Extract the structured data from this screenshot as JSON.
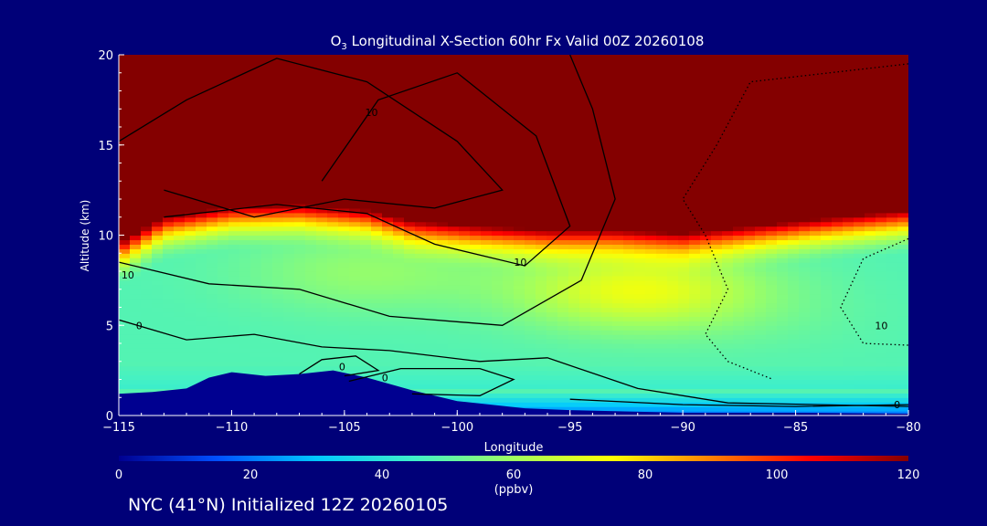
{
  "chart_data": {
    "type": "heatmap",
    "title_prefix": "O",
    "title_subscript": "3",
    "title_rest": " Longitudinal X-Section 60hr  Fx Valid 00Z 20260108",
    "xlabel": "Longitude",
    "ylabel": "Altitude (km)",
    "xlim": [
      -115,
      -80
    ],
    "ylim": [
      0,
      20
    ],
    "x_ticks": [
      {
        "v": -115,
        "label": "−115"
      },
      {
        "v": -110,
        "label": "−110"
      },
      {
        "v": -105,
        "label": "−105"
      },
      {
        "v": -100,
        "label": "−100"
      },
      {
        "v": -95,
        "label": "−95"
      },
      {
        "v": -90,
        "label": "−90"
      },
      {
        "v": -85,
        "label": "−85"
      },
      {
        "v": -80,
        "label": "−80"
      }
    ],
    "y_ticks": [
      {
        "v": 0,
        "label": "0"
      },
      {
        "v": 5,
        "label": "5"
      },
      {
        "v": 10,
        "label": "10"
      },
      {
        "v": 15,
        "label": "15"
      },
      {
        "v": 20,
        "label": "20"
      }
    ],
    "colorbar": {
      "range": [
        0,
        120
      ],
      "ticks": [
        {
          "v": 0,
          "label": "0"
        },
        {
          "v": 20,
          "label": "20"
        },
        {
          "v": 40,
          "label": "40"
        },
        {
          "v": 60,
          "label": "60"
        },
        {
          "v": 80,
          "label": "80"
        },
        {
          "v": 100,
          "label": "100"
        },
        {
          "v": 120,
          "label": "120"
        }
      ],
      "units": "(ppbv)",
      "colors": [
        "#000090",
        "#0050ff",
        "#00c8ff",
        "#40f0c8",
        "#a0ff60",
        "#ffff00",
        "#ff8000",
        "#ff0000",
        "#840000"
      ]
    },
    "tropopause_km": [
      [
        -115,
        9.3
      ],
      [
        -113,
        10.7
      ],
      [
        -110,
        11.3
      ],
      [
        -107,
        11.4
      ],
      [
        -104,
        11.1
      ],
      [
        -102,
        10.5
      ],
      [
        -99,
        10.2
      ],
      [
        -96,
        10.0
      ],
      [
        -93,
        10.0
      ],
      [
        -90,
        9.8
      ],
      [
        -87,
        10.2
      ],
      [
        -84,
        10.6
      ],
      [
        -80,
        11.1
      ]
    ],
    "mid_level_max": [
      {
        "lon": -104,
        "alt": 8.0,
        "ppbv": 58
      },
      {
        "lon": -92,
        "alt": 7.0,
        "ppbv": 72
      },
      {
        "lon": -86,
        "alt": 5.5,
        "ppbv": 50
      }
    ],
    "terrain_km": [
      [
        -115,
        1.2
      ],
      [
        -113.5,
        1.3
      ],
      [
        -112,
        1.5
      ],
      [
        -111,
        2.1
      ],
      [
        -110,
        2.4
      ],
      [
        -108.5,
        2.2
      ],
      [
        -107,
        2.3
      ],
      [
        -105.5,
        2.5
      ],
      [
        -104,
        2.1
      ],
      [
        -102,
        1.4
      ],
      [
        -100,
        0.8
      ],
      [
        -97,
        0.4
      ],
      [
        -95,
        0.3
      ],
      [
        -90,
        0.15
      ],
      [
        -85,
        0.15
      ],
      [
        -80,
        0.1
      ]
    ],
    "contours": [
      {
        "label": "10",
        "style": "solid",
        "lon": -103.8,
        "alt": 16.8,
        "points": [
          [
            -115,
            15.2
          ],
          [
            -112,
            17.5
          ],
          [
            -108,
            19.8
          ],
          [
            -104,
            18.5
          ],
          [
            -100,
            15.2
          ],
          [
            -98,
            12.5
          ],
          [
            -101,
            11.5
          ],
          [
            -105,
            12.0
          ],
          [
            -109,
            11.0
          ],
          [
            -113,
            12.5
          ]
        ]
      },
      {
        "label": "10",
        "style": "solid",
        "lon": -97.2,
        "alt": 8.5,
        "points": [
          [
            -113,
            11.0
          ],
          [
            -108,
            11.7
          ],
          [
            -104,
            11.2
          ],
          [
            -101,
            9.5
          ],
          [
            -97,
            8.3
          ],
          [
            -95,
            10.5
          ],
          [
            -96.5,
            15.5
          ],
          [
            -100,
            19.0
          ],
          [
            -103.5,
            17.5
          ],
          [
            -106,
            13.0
          ]
        ]
      },
      {
        "label": "10",
        "style": "solid",
        "lon": -114.6,
        "alt": 7.8,
        "points": [
          [
            -115,
            8.5
          ],
          [
            -111,
            7.3
          ],
          [
            -107,
            7.0
          ],
          [
            -103,
            5.5
          ],
          [
            -98,
            5.0
          ],
          [
            -94.5,
            7.5
          ],
          [
            -93,
            12.0
          ],
          [
            -94,
            17.0
          ],
          [
            -95,
            20.0
          ]
        ]
      },
      {
        "label": "0",
        "style": "solid",
        "lon": -114.1,
        "alt": 5.0,
        "points": [
          [
            -115,
            5.3
          ],
          [
            -112,
            4.2
          ],
          [
            -109,
            4.5
          ],
          [
            -106,
            3.8
          ],
          [
            -103,
            3.6
          ],
          [
            -99,
            3.0
          ],
          [
            -96,
            3.2
          ],
          [
            -92,
            1.5
          ],
          [
            -88,
            0.7
          ],
          [
            -84,
            0.6
          ],
          [
            -80,
            0.5
          ]
        ]
      },
      {
        "label": "0",
        "style": "solid",
        "lon": -105.1,
        "alt": 2.7,
        "points": [
          [
            -107,
            2.3
          ],
          [
            -106,
            3.1
          ],
          [
            -104.5,
            3.3
          ],
          [
            -103.5,
            2.5
          ],
          [
            -105,
            2.2
          ]
        ]
      },
      {
        "label": "0",
        "style": "solid",
        "lon": -103.2,
        "alt": 2.1,
        "points": [
          [
            -104.8,
            1.9
          ],
          [
            -102.5,
            2.6
          ],
          [
            -99,
            2.6
          ],
          [
            -97.5,
            2.0
          ],
          [
            -99,
            1.1
          ],
          [
            -102,
            1.2
          ]
        ]
      },
      {
        "label": "10",
        "style": "dotted",
        "lon": -81.2,
        "alt": 5.0,
        "points": [
          [
            -80,
            9.8
          ],
          [
            -82,
            8.7
          ],
          [
            -83,
            6.0
          ],
          [
            -82,
            4.0
          ],
          [
            -80,
            3.9
          ]
        ]
      },
      {
        "label": "",
        "style": "dotted",
        "lon": -88.5,
        "alt": 18.0,
        "points": [
          [
            -80,
            19.5
          ],
          [
            -87,
            18.5
          ],
          [
            -88.5,
            15.0
          ],
          [
            -90,
            12.0
          ],
          [
            -89,
            10.0
          ],
          [
            -88,
            7.0
          ],
          [
            -89,
            4.5
          ],
          [
            -88,
            3.0
          ],
          [
            -86,
            2.0
          ]
        ]
      },
      {
        "label": "0",
        "style": "solid",
        "lon": -80.5,
        "alt": 0.6,
        "points": [
          [
            -95,
            0.9
          ],
          [
            -90,
            0.6
          ],
          [
            -85,
            0.5
          ],
          [
            -80,
            0.6
          ]
        ]
      }
    ]
  },
  "footer": {
    "text": "NYC (41°N) Initialized 12Z 20260105"
  }
}
